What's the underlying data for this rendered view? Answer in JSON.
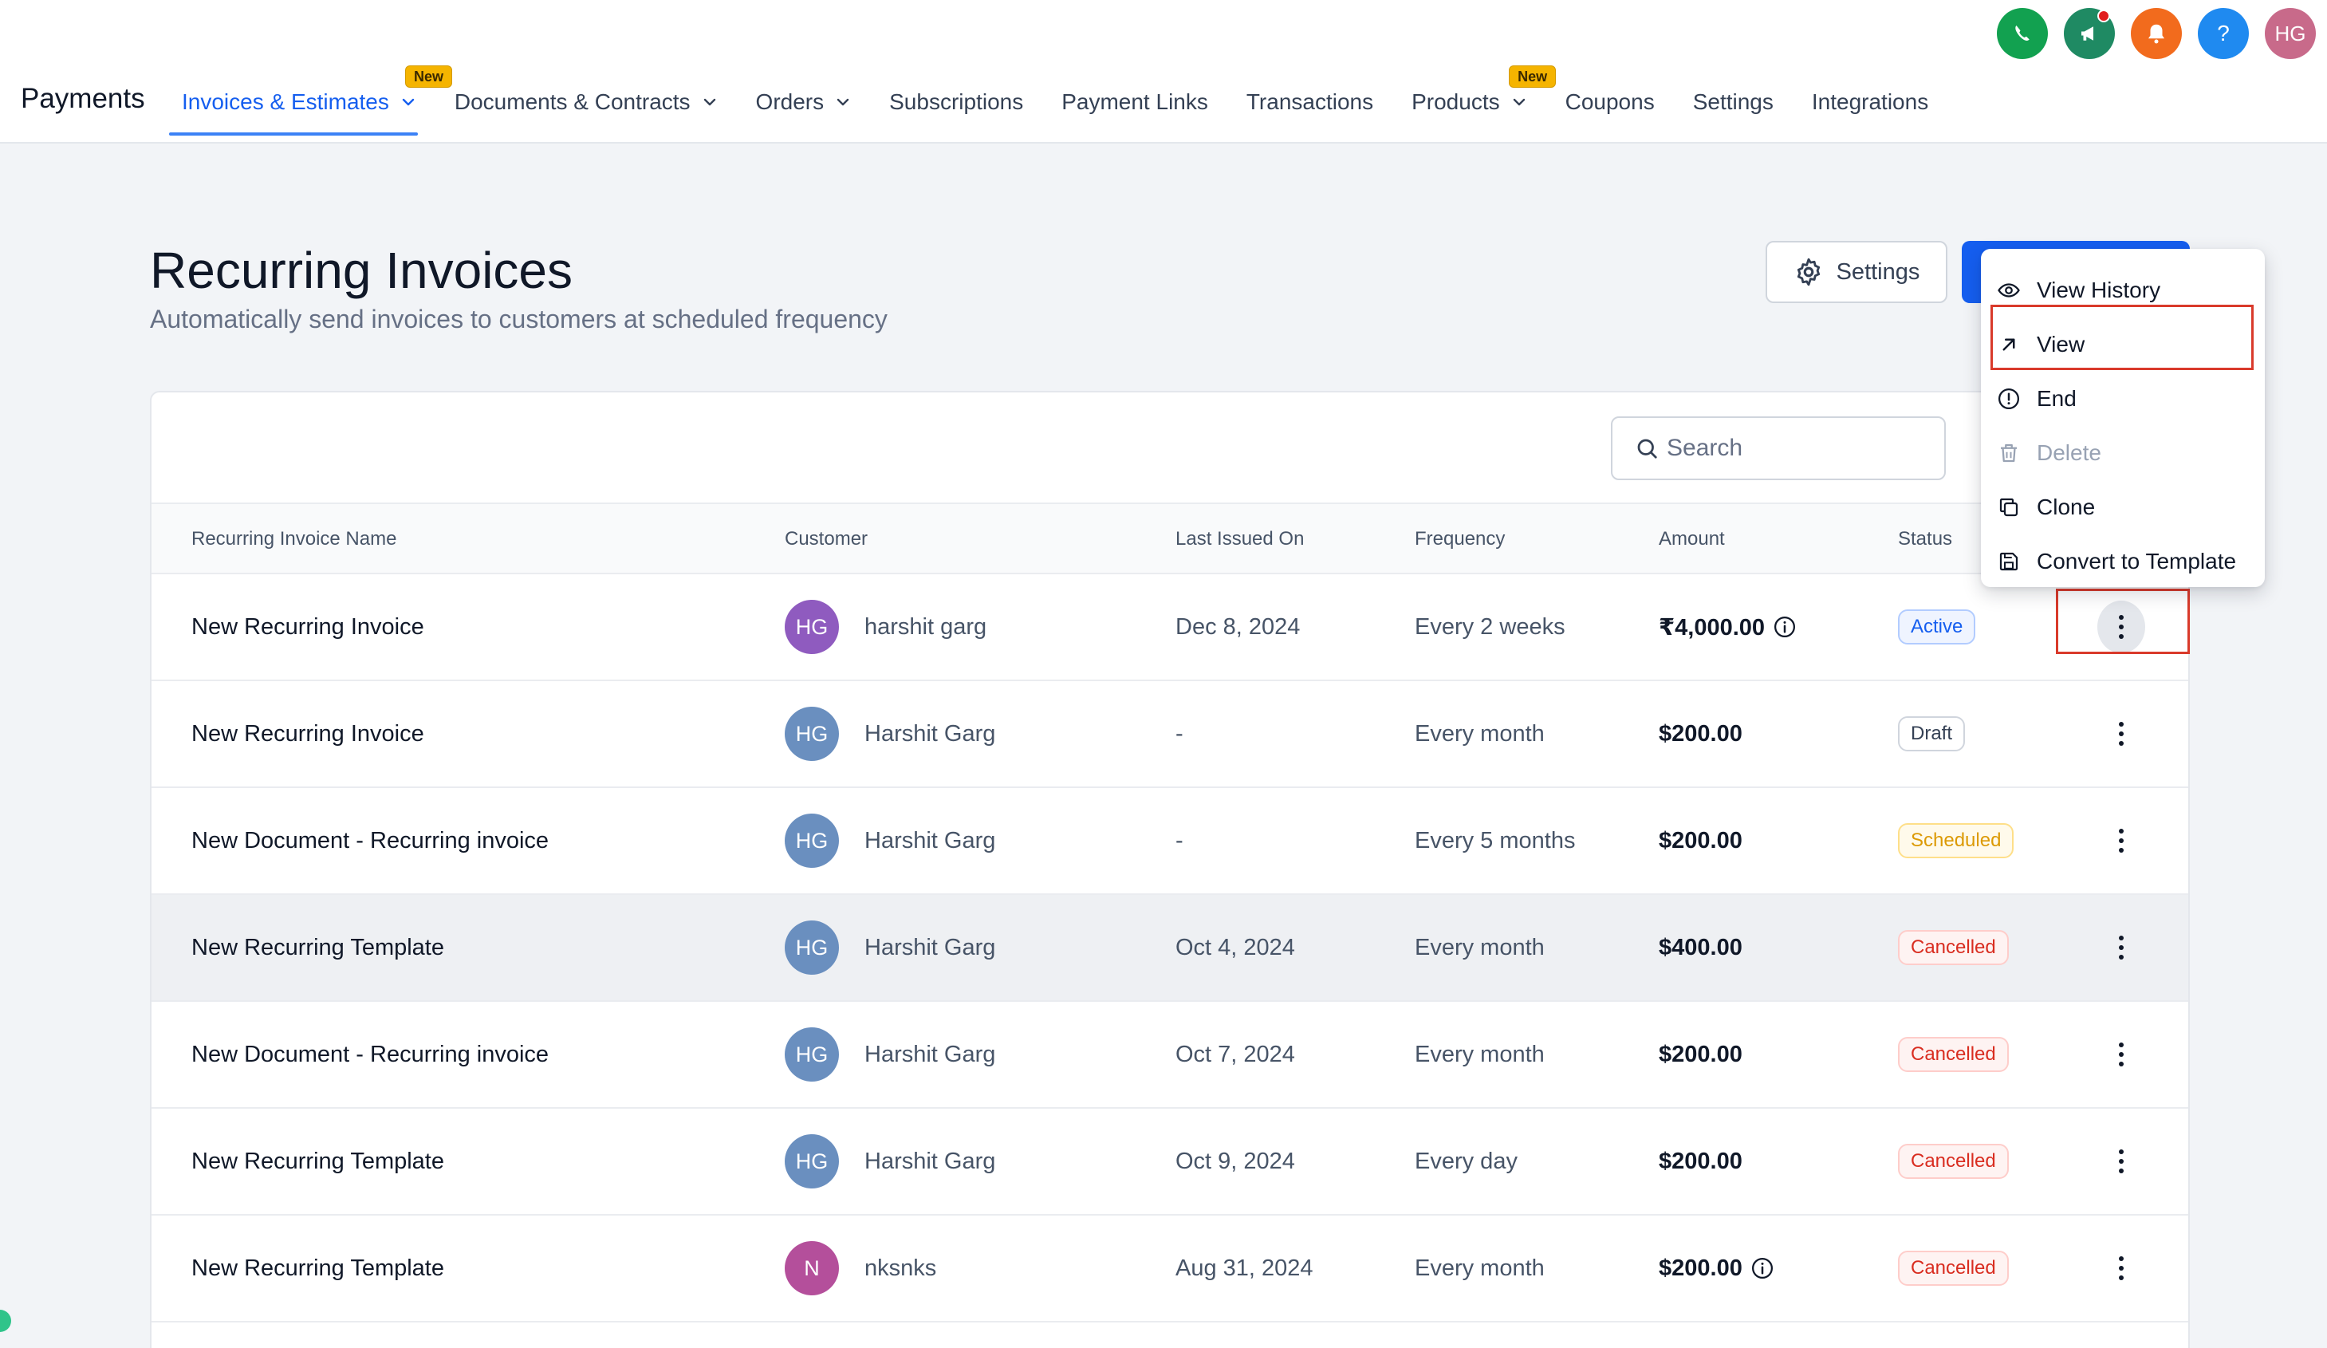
{
  "header": {
    "brand": "Payments",
    "nav": [
      {
        "label": "Invoices & Estimates",
        "badge": "New",
        "chevron": true,
        "active": true
      },
      {
        "label": "Documents & Contracts",
        "chevron": true
      },
      {
        "label": "Orders",
        "chevron": true
      },
      {
        "label": "Subscriptions"
      },
      {
        "label": "Payment Links"
      },
      {
        "label": "Transactions"
      },
      {
        "label": "Products",
        "badge": "New",
        "chevron": true
      },
      {
        "label": "Coupons"
      },
      {
        "label": "Settings"
      },
      {
        "label": "Integrations"
      }
    ],
    "help_label": "?",
    "user_initials": "HG"
  },
  "page": {
    "title": "Recurring Invoices",
    "subtitle": "Automatically send invoices to customers at scheduled frequency",
    "settings_label": "Settings"
  },
  "search": {
    "placeholder": "Search"
  },
  "table": {
    "columns": [
      "Recurring Invoice Name",
      "Customer",
      "Last Issued On",
      "Frequency",
      "Amount",
      "Status"
    ],
    "rows": [
      {
        "name": "New Recurring Invoice",
        "initials": "HG",
        "customer": "harshit garg",
        "last_issued": "Dec 8, 2024",
        "frequency": "Every 2 weeks",
        "amount": "₹4,000.00",
        "status": "Active"
      },
      {
        "name": "New Recurring Invoice",
        "initials": "HG",
        "customer": "Harshit Garg",
        "last_issued": "-",
        "frequency": "Every month",
        "amount": "$200.00",
        "status": "Draft"
      },
      {
        "name": "New Document - Recurring invoice",
        "initials": "HG",
        "customer": "Harshit Garg",
        "last_issued": "-",
        "frequency": "Every 5 months",
        "amount": "$200.00",
        "status": "Scheduled"
      },
      {
        "name": "New Recurring Template",
        "initials": "HG",
        "customer": "Harshit Garg",
        "last_issued": "Oct 4, 2024",
        "frequency": "Every month",
        "amount": "$400.00",
        "status": "Cancelled"
      },
      {
        "name": "New Document - Recurring invoice",
        "initials": "HG",
        "customer": "Harshit Garg",
        "last_issued": "Oct 7, 2024",
        "frequency": "Every month",
        "amount": "$200.00",
        "status": "Cancelled"
      },
      {
        "name": "New Recurring Template",
        "initials": "HG",
        "customer": "Harshit Garg",
        "last_issued": "Oct 9, 2024",
        "frequency": "Every day",
        "amount": "$200.00",
        "status": "Cancelled"
      },
      {
        "name": "New Recurring Template",
        "initials": "N",
        "customer": "nksnks",
        "last_issued": "Aug 31, 2024",
        "frequency": "Every month",
        "amount": "$200.00",
        "status": "Cancelled"
      }
    ]
  },
  "menu": {
    "items": [
      {
        "label": "View History",
        "icon": "eye-icon"
      },
      {
        "label": "View",
        "icon": "arrow-up-right-icon"
      },
      {
        "label": "End",
        "icon": "alert-circle-icon"
      },
      {
        "label": "Delete",
        "icon": "trash-icon",
        "disabled": true
      },
      {
        "label": "Clone",
        "icon": "copy-icon"
      },
      {
        "label": "Convert to Template",
        "icon": "save-icon"
      }
    ]
  }
}
